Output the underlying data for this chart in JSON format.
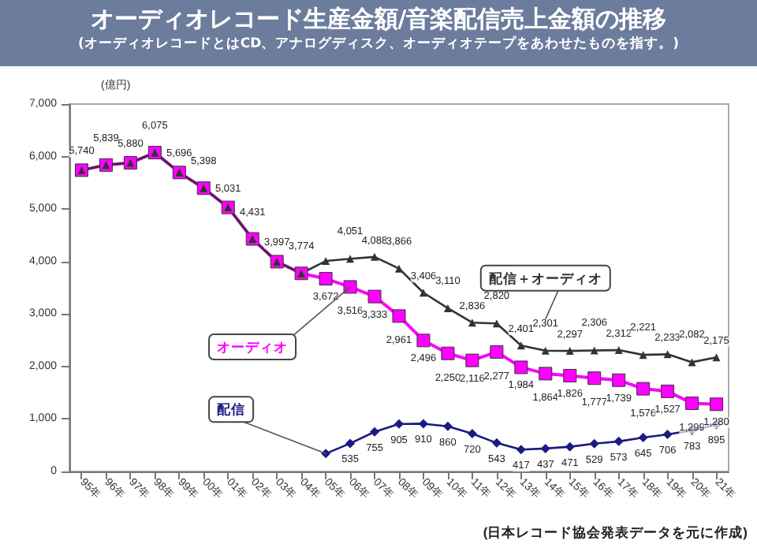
{
  "chart_data": {
    "type": "line",
    "title": "オーディオレコード生産金額/音楽配信売上金額の推移",
    "subtitle": "(オーディオレコードとはCD、アナログディスク、オーディオテープをあわせたものを指す。)",
    "ylabel": "(億円)",
    "annotations": [
      "(日本レコード協会発表データを元に作成)"
    ],
    "categories": [
      "95年",
      "96年",
      "97年",
      "98年",
      "99年",
      "00年",
      "01年",
      "02年",
      "03年",
      "04年",
      "05年",
      "06年",
      "07年",
      "08年",
      "09年",
      "10年",
      "11年",
      "12年",
      "13年",
      "14年",
      "15年",
      "16年",
      "17年",
      "18年",
      "19年",
      "20年",
      "21年"
    ],
    "ylim": [
      0,
      7000
    ],
    "yticks": [
      0,
      {
        "value": 1000,
        "label": "1,000"
      },
      {
        "value": 2000,
        "label": "2,000"
      },
      {
        "value": 3000,
        "label": "3,000"
      },
      {
        "value": 4000,
        "label": "4,000"
      },
      {
        "value": 5000,
        "label": "5,000"
      },
      {
        "value": 6000,
        "label": "6,000"
      },
      {
        "value": 7000,
        "label": "7,000"
      }
    ],
    "grid": false,
    "legend": false,
    "series": [
      {
        "name": "オーディオ",
        "color": "#ff00ff",
        "marker": "square",
        "values": [
          5740,
          5839,
          5880,
          6075,
          5696,
          5398,
          5031,
          4431,
          3997,
          3774,
          3672,
          3516,
          3333,
          2961,
          2496,
          2250,
          2116,
          2277,
          1984,
          1864,
          1826,
          1777,
          1739,
          1576,
          1527,
          1299,
          1280
        ],
        "value_labels": [
          "5,740",
          "5,839",
          "5,880",
          "6,075",
          "5,696",
          "5,398",
          "5,031",
          "4,431",
          "3,997",
          "3,774",
          "3,672",
          "3,516",
          "3,333",
          "2,961",
          "2,496",
          "2,250",
          "2,116",
          "2,277",
          "1,984",
          "1,864",
          "1,826",
          "1,777",
          "1,739",
          "1,576",
          "1,527",
          "1,299",
          "1,280"
        ]
      },
      {
        "name": "配信＋オーディオ",
        "color": "#333333",
        "marker": "triangle",
        "values": [
          5740,
          5839,
          5880,
          6075,
          5696,
          5398,
          5031,
          4431,
          3997,
          3774,
          4010,
          4051,
          4088,
          3866,
          3406,
          3110,
          2836,
          2820,
          2401,
          2301,
          2297,
          2306,
          2312,
          2221,
          2233,
          2082,
          2175
        ],
        "value_labels": [
          null,
          null,
          null,
          null,
          null,
          null,
          null,
          null,
          null,
          null,
          null,
          "4,051",
          "4,088",
          "3,866",
          "3,406",
          "3,110",
          "2,836",
          "2,820",
          "2,401",
          "2,301",
          "2,297",
          "2,306",
          "2,312",
          "2,221",
          "2,233",
          "2,082",
          "2,175"
        ]
      },
      {
        "name": "配信",
        "color": "#1a1a80",
        "marker": "diamond",
        "values": [
          null,
          null,
          null,
          null,
          null,
          null,
          null,
          null,
          null,
          null,
          340,
          535,
          755,
          905,
          910,
          860,
          720,
          543,
          417,
          437,
          471,
          529,
          573,
          645,
          706,
          783,
          895
        ],
        "value_labels": [
          null,
          null,
          null,
          null,
          null,
          null,
          null,
          null,
          null,
          null,
          null,
          "535",
          "755",
          "905",
          "910",
          "860",
          "720",
          "543",
          "417",
          "437",
          "471",
          "529",
          "573",
          "645",
          "706",
          "783",
          "895"
        ]
      }
    ]
  }
}
